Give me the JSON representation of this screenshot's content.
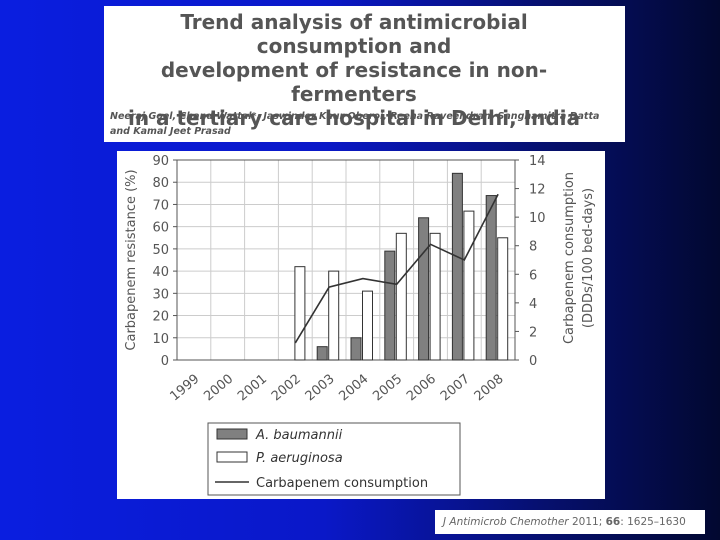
{
  "slide": {
    "title_line1": "Trend analysis of antimicrobial consumption and",
    "title_line2": "development of resistance in non-fermenters",
    "title_line3": "in a tertiary care hospital in Delhi, India",
    "authors_line1": "Neeraj Goel, Chand Wattal*, Jaswinder Kaur Oberoi, Reena Raveendran, Sanghamitra Datta",
    "authors_line2": "and Kamal Jeet Prasad",
    "citation_journal": "J Antimicrob Chemother",
    "citation_year": "2011;",
    "citation_volume": "66",
    "citation_pages": ": 1625–1630",
    "colors": {
      "background_blue": "#0a1ee0",
      "bar_a_baumannii": "#808080",
      "bar_p_aeruginosa": "#ffffff",
      "line": "#333333"
    }
  },
  "chart_data": {
    "type": "bar",
    "categories": [
      "1999",
      "2000",
      "2001",
      "2002",
      "2003",
      "2004",
      "2005",
      "2006",
      "2007",
      "2008"
    ],
    "series": [
      {
        "name": "A. baumannii",
        "kind": "bar",
        "axis": "left",
        "values": [
          null,
          null,
          null,
          null,
          6,
          10,
          49,
          64,
          84,
          74
        ]
      },
      {
        "name": "P. aeruginosa",
        "kind": "bar",
        "axis": "left",
        "values": [
          null,
          null,
          null,
          42,
          40,
          31,
          57,
          57,
          67,
          55
        ]
      },
      {
        "name": "Carbapenem consumption",
        "kind": "line",
        "axis": "right",
        "values": [
          null,
          null,
          null,
          1.2,
          5.1,
          5.7,
          5.3,
          8.1,
          7.0,
          11.6
        ]
      }
    ],
    "ylabel": "Carbapenem resistance (%)",
    "ylim": [
      0,
      90
    ],
    "yticks": [
      "0",
      "10",
      "20",
      "30",
      "40",
      "50",
      "60",
      "70",
      "80",
      "90"
    ],
    "y2label_line1": "Carbapenem consumption",
    "y2label_line2": "(DDDs/100 bed-days)",
    "y2lim": [
      0,
      14
    ],
    "y2ticks": [
      "0",
      "2",
      "4",
      "6",
      "8",
      "10",
      "12",
      "14"
    ],
    "grid": true,
    "legend_position": "bottom",
    "legend": [
      "A. baumannii",
      "P. aeruginosa",
      "Carbapenem consumption"
    ]
  }
}
